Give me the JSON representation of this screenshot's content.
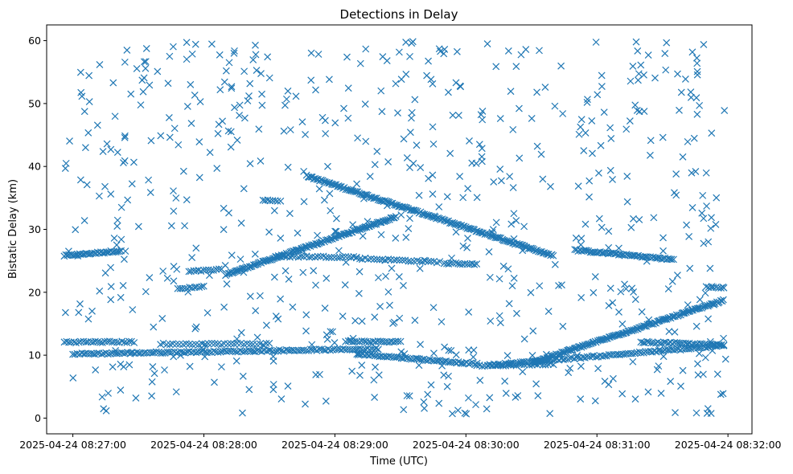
{
  "chart_data": {
    "type": "scatter",
    "title": "Detections in Delay",
    "xlabel": "Time (UTC)",
    "ylabel": "Bistatic Delay (km)",
    "marker": "x",
    "color": "#1f77b4",
    "grid": false,
    "legend": "none",
    "xlim": [
      "2025-04-24 08:26:48",
      "2025-04-24 08:32:11"
    ],
    "ylim": [
      -2.5,
      62.5
    ],
    "x_ticks": [
      "2025-04-24 08:27:00",
      "2025-04-24 08:28:00",
      "2025-04-24 08:29:00",
      "2025-04-24 08:30:00",
      "2025-04-24 08:31:00",
      "2025-04-24 08:32:00"
    ],
    "y_ticks": [
      "0",
      "10",
      "20",
      "30",
      "40",
      "50",
      "60"
    ],
    "series": [
      {
        "description_of_tracks": "dense linear tracks plus uniform clutter",
        "tracks": [
          {
            "start": "2025-04-24 08:26:56",
            "end": "2025-04-24 08:27:22",
            "y_start": 25.8,
            "y_end": 26.6,
            "count": 35
          },
          {
            "start": "2025-04-24 08:27:48",
            "end": "2025-04-24 08:28:00",
            "y_start": 20.5,
            "y_end": 20.9,
            "count": 12
          },
          {
            "start": "2025-04-24 08:27:53",
            "end": "2025-04-24 08:28:08",
            "y_start": 23.3,
            "y_end": 23.6,
            "count": 14
          },
          {
            "start": "2025-04-24 08:28:10",
            "end": "2025-04-24 08:29:28",
            "y_start": 22.8,
            "y_end": 32.0,
            "count": 130
          },
          {
            "start": "2025-04-24 08:28:27",
            "end": "2025-04-24 08:28:35",
            "y_start": 34.6,
            "y_end": 34.6,
            "count": 8
          },
          {
            "start": "2025-04-24 08:28:47",
            "end": "2025-04-24 08:30:40",
            "y_start": 38.5,
            "y_end": 25.8,
            "count": 170
          },
          {
            "start": "2025-04-24 08:28:33",
            "end": "2025-04-24 08:29:10",
            "y_start": 25.7,
            "y_end": 25.6,
            "count": 30
          },
          {
            "start": "2025-04-24 08:29:10",
            "end": "2025-04-24 08:29:48",
            "y_start": 25.4,
            "y_end": 24.8,
            "count": 30
          },
          {
            "start": "2025-04-24 08:29:50",
            "end": "2025-04-24 08:30:05",
            "y_start": 24.6,
            "y_end": 24.5,
            "count": 15
          },
          {
            "start": "2025-04-24 08:30:50",
            "end": "2025-04-24 08:31:35",
            "y_start": 26.7,
            "y_end": 25.2,
            "count": 60
          },
          {
            "start": "2025-04-24 08:26:56",
            "end": "2025-04-24 08:27:28",
            "y_start": 12.1,
            "y_end": 12.1,
            "count": 30
          },
          {
            "start": "2025-04-24 08:27:00",
            "end": "2025-04-24 08:29:20",
            "y_start": 10.2,
            "y_end": 11.0,
            "count": 140
          },
          {
            "start": "2025-04-24 08:27:40",
            "end": "2025-04-24 08:28:30",
            "y_start": 11.8,
            "y_end": 11.8,
            "count": 35
          },
          {
            "start": "2025-04-24 08:29:05",
            "end": "2025-04-24 08:29:30",
            "y_start": 12.2,
            "y_end": 12.1,
            "count": 25
          },
          {
            "start": "2025-04-24 08:29:10",
            "end": "2025-04-24 08:30:05",
            "y_start": 10.2,
            "y_end": 8.6,
            "count": 60
          },
          {
            "start": "2025-04-24 08:30:05",
            "end": "2025-04-24 08:30:40",
            "y_start": 8.3,
            "y_end": 8.6,
            "count": 30
          },
          {
            "start": "2025-04-24 08:30:10",
            "end": "2025-04-24 08:31:58",
            "y_start": 8.4,
            "y_end": 11.5,
            "count": 110
          },
          {
            "start": "2025-04-24 08:30:30",
            "end": "2025-04-24 08:31:58",
            "y_start": 8.8,
            "y_end": 18.7,
            "count": 140
          },
          {
            "start": "2025-04-24 08:31:20",
            "end": "2025-04-24 08:31:58",
            "y_start": 12.1,
            "y_end": 11.6,
            "count": 40
          },
          {
            "start": "2025-04-24 08:31:50",
            "end": "2025-04-24 08:31:58",
            "y_start": 20.8,
            "y_end": 20.8,
            "count": 8
          }
        ],
        "clutter": {
          "count": 680,
          "x_range": [
            "2025-04-24 08:26:56",
            "2025-04-24 08:31:59"
          ],
          "y_range": [
            0.5,
            60
          ]
        }
      }
    ]
  }
}
